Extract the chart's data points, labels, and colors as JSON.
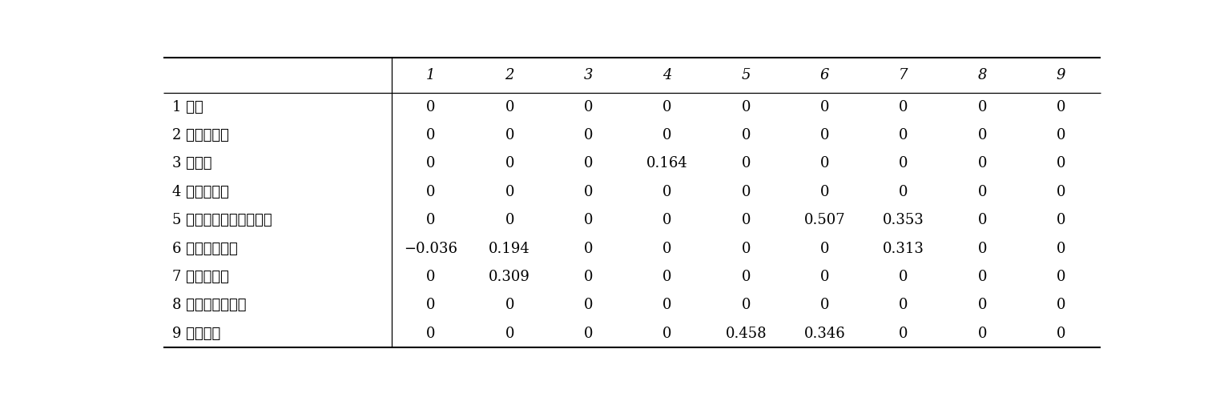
{
  "col_headers": [
    "",
    "1",
    "2",
    "3",
    "4",
    "5",
    "6",
    "7",
    "8",
    "9"
  ],
  "row_headers": [
    "1 年齢",
    "2 楽しかった",
    "3 疲れた",
    "4 痛みがある",
    "5 シュートやパスをした",
    "6 ドリブルした",
    "7 よく走った",
    "8 リフティング数",
    "9 ゴール数"
  ],
  "table_data": [
    [
      "0",
      "0",
      "0",
      "0",
      "0",
      "0",
      "0",
      "0",
      "0"
    ],
    [
      "0",
      "0",
      "0",
      "0",
      "0",
      "0",
      "0",
      "0",
      "0"
    ],
    [
      "0",
      "0",
      "0",
      "0.164",
      "0",
      "0",
      "0",
      "0",
      "0"
    ],
    [
      "0",
      "0",
      "0",
      "0",
      "0",
      "0",
      "0",
      "0",
      "0"
    ],
    [
      "0",
      "0",
      "0",
      "0",
      "0",
      "0.507",
      "0.353",
      "0",
      "0"
    ],
    [
      "−0.036",
      "0.194",
      "0",
      "0",
      "0",
      "0",
      "0.313",
      "0",
      "0"
    ],
    [
      "0",
      "0.309",
      "0",
      "0",
      "0",
      "0",
      "0",
      "0",
      "0"
    ],
    [
      "0",
      "0",
      "0",
      "0",
      "0",
      "0",
      "0",
      "0",
      "0"
    ],
    [
      "0",
      "0",
      "0",
      "0",
      "0.458",
      "0.346",
      "0",
      "0",
      "0"
    ]
  ],
  "figsize": [
    15.33,
    5.01
  ],
  "dpi": 100,
  "font_size": 13,
  "background_color": "#ffffff",
  "line_color": "#000000",
  "text_color": "#000000"
}
